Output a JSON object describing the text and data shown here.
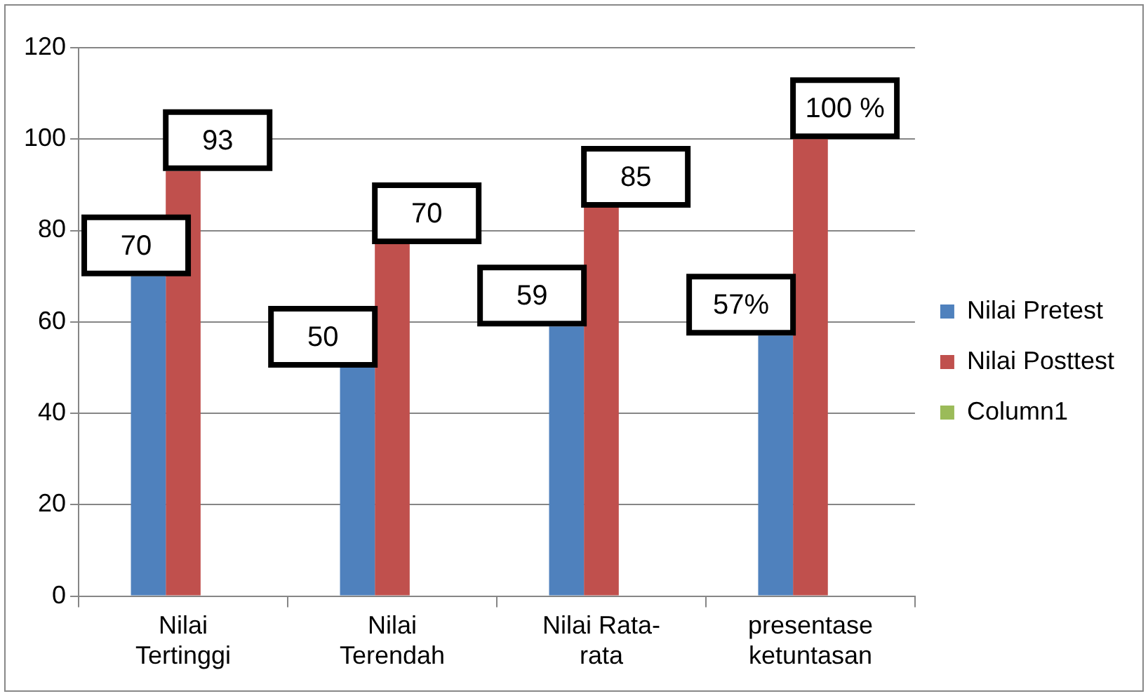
{
  "chart_data": {
    "type": "bar",
    "categories": [
      "Nilai Tertinggi",
      "Nilai Terendah",
      "Nilai Rata-rata",
      "presentase ketuntasan"
    ],
    "series": [
      {
        "name": "Nilai Pretest",
        "color": "#4f81bd",
        "values": [
          70,
          50,
          59,
          57
        ],
        "value_labels": [
          "70",
          "50",
          "59",
          "57%"
        ]
      },
      {
        "name": "Nilai Posttest",
        "color": "#c0504d",
        "values": [
          93,
          77,
          85,
          100
        ],
        "value_labels": [
          "93",
          null,
          "85",
          "100 %"
        ]
      },
      {
        "name": "Column1",
        "color": "#9bbb59",
        "values": [
          null,
          null,
          null,
          null
        ]
      }
    ],
    "annotations": [
      {
        "text": "70",
        "x": "Nilai Terendah",
        "y": 77
      }
    ],
    "ylim": [
      0,
      120
    ],
    "yticks": [
      0,
      20,
      40,
      60,
      80,
      100,
      120
    ],
    "grid": "y",
    "legend": "right"
  }
}
